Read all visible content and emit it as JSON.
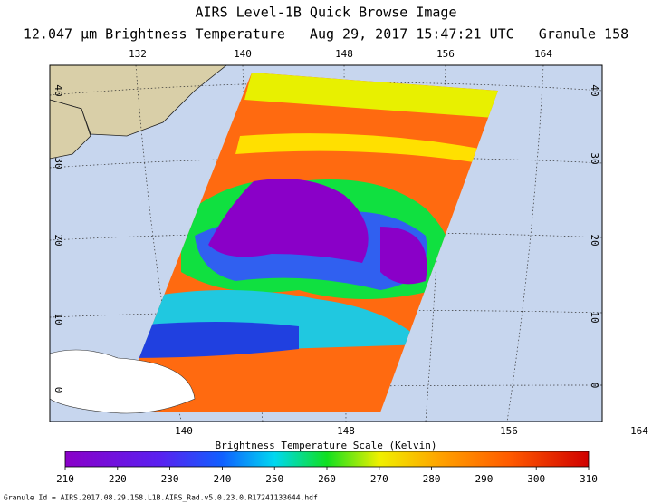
{
  "header": {
    "title": "AIRS Level-1B Quick Browse Image",
    "subtitle": "12.047 μm Brightness Temperature   Aug 29, 2017 15:47:21 UTC   Granule 158"
  },
  "map": {
    "top_lon_labels": [
      "132",
      "140",
      "148",
      "156",
      "164"
    ],
    "bottom_lon_labels": [
      "140",
      "148",
      "156",
      "164"
    ],
    "left_lat_labels": [
      "40",
      "30",
      "20",
      "10",
      "0"
    ],
    "right_lat_labels": [
      "40",
      "30",
      "20",
      "10",
      "0"
    ]
  },
  "colorbar": {
    "title": "Brightness Temperature Scale (Kelvin)",
    "ticks": [
      210,
      220,
      230,
      240,
      250,
      260,
      270,
      280,
      290,
      300,
      310
    ]
  },
  "footer": {
    "granule_id": "Granule Id = AIRS.2017.08.29.158.L1B.AIRS_Rad.v5.0.23.0.R17241133644.hdf"
  }
}
